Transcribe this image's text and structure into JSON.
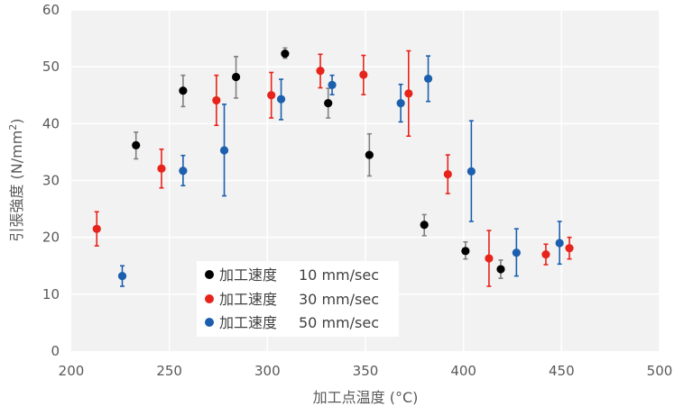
{
  "chart_data": {
    "type": "scatter",
    "title": "",
    "xlabel": "加工点温度 (°C)",
    "ylabel_main": "引張強度 (N/mm",
    "ylabel_sup": "2",
    "ylabel_tail": ")",
    "xlim": [
      200,
      500
    ],
    "ylim": [
      0,
      60
    ],
    "xticks": [
      200,
      250,
      300,
      350,
      400,
      450,
      500
    ],
    "yticks": [
      0,
      10,
      20,
      30,
      40,
      50,
      60
    ],
    "grid": true,
    "legend_position": "lower-left",
    "series": [
      {
        "name": "加工速度 10 mm/sec",
        "label_prefix": "加工速度",
        "label_value": "10 mm/sec",
        "color": "#000000",
        "error_color": "#808080",
        "points": [
          {
            "x": 233,
            "y": 36.2,
            "lo": 33.8,
            "hi": 38.5
          },
          {
            "x": 257,
            "y": 45.8,
            "lo": 43.0,
            "hi": 48.5
          },
          {
            "x": 284,
            "y": 48.2,
            "lo": 44.5,
            "hi": 51.8
          },
          {
            "x": 309,
            "y": 52.3,
            "lo": 51.5,
            "hi": 53.3
          },
          {
            "x": 331,
            "y": 43.6,
            "lo": 41.0,
            "hi": 46.2
          },
          {
            "x": 352,
            "y": 34.5,
            "lo": 30.8,
            "hi": 38.2
          },
          {
            "x": 380,
            "y": 22.2,
            "lo": 20.3,
            "hi": 24.0
          },
          {
            "x": 401,
            "y": 17.6,
            "lo": 16.2,
            "hi": 19.2
          },
          {
            "x": 419,
            "y": 14.4,
            "lo": 12.8,
            "hi": 16.0
          }
        ]
      },
      {
        "name": "加工速度 30 mm/sec",
        "label_prefix": "加工速度",
        "label_value": "30 mm/sec",
        "color": "#e8231b",
        "error_color": "#e8231b",
        "points": [
          {
            "x": 213,
            "y": 21.5,
            "lo": 18.5,
            "hi": 24.5
          },
          {
            "x": 246,
            "y": 32.1,
            "lo": 28.7,
            "hi": 35.5
          },
          {
            "x": 274,
            "y": 44.1,
            "lo": 39.7,
            "hi": 48.5
          },
          {
            "x": 302,
            "y": 45.0,
            "lo": 41.0,
            "hi": 49.0
          },
          {
            "x": 327,
            "y": 49.3,
            "lo": 46.3,
            "hi": 52.2
          },
          {
            "x": 349,
            "y": 48.6,
            "lo": 45.1,
            "hi": 52.0
          },
          {
            "x": 372,
            "y": 45.3,
            "lo": 37.8,
            "hi": 52.8
          },
          {
            "x": 392,
            "y": 31.1,
            "lo": 27.7,
            "hi": 34.5
          },
          {
            "x": 413,
            "y": 16.3,
            "lo": 11.4,
            "hi": 21.2
          },
          {
            "x": 442,
            "y": 17.0,
            "lo": 15.2,
            "hi": 18.8
          },
          {
            "x": 454,
            "y": 18.1,
            "lo": 16.2,
            "hi": 20.0
          }
        ]
      },
      {
        "name": "加工速度 50 mm/sec",
        "label_prefix": "加工速度",
        "label_value": "50 mm/sec",
        "color": "#1b5fae",
        "error_color": "#1b5fae",
        "points": [
          {
            "x": 226,
            "y": 13.2,
            "lo": 11.4,
            "hi": 15.0
          },
          {
            "x": 257,
            "y": 31.7,
            "lo": 29.1,
            "hi": 34.4
          },
          {
            "x": 278,
            "y": 35.3,
            "lo": 27.3,
            "hi": 43.4
          },
          {
            "x": 307,
            "y": 44.3,
            "lo": 40.7,
            "hi": 47.8
          },
          {
            "x": 333,
            "y": 46.8,
            "lo": 45.1,
            "hi": 48.5
          },
          {
            "x": 368,
            "y": 43.6,
            "lo": 40.3,
            "hi": 46.9
          },
          {
            "x": 382,
            "y": 47.9,
            "lo": 43.9,
            "hi": 51.9
          },
          {
            "x": 404,
            "y": 31.6,
            "lo": 22.8,
            "hi": 40.5
          },
          {
            "x": 427,
            "y": 17.3,
            "lo": 13.2,
            "hi": 21.5
          },
          {
            "x": 449,
            "y": 19.0,
            "lo": 15.3,
            "hi": 22.8
          }
        ]
      }
    ]
  }
}
